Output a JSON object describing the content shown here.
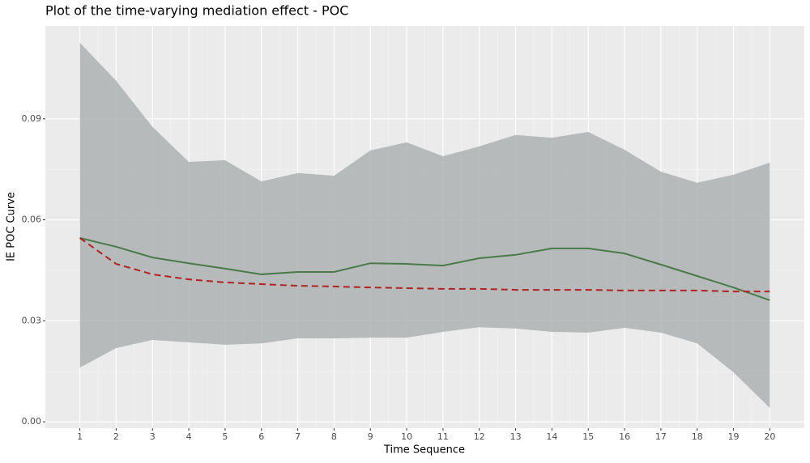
{
  "chart_data": {
    "type": "line",
    "title": "Plot of the time-varying mediation effect - POC",
    "x_label": "Time Sequence",
    "y_label": "IE POC Curve",
    "x": [
      1,
      2,
      3,
      4,
      5,
      6,
      7,
      8,
      9,
      10,
      11,
      12,
      13,
      14,
      15,
      16,
      17,
      18,
      19,
      20
    ],
    "band": {
      "color": "#aeb2b2",
      "upper": [
        0.1126,
        0.1013,
        0.0876,
        0.0772,
        0.0777,
        0.0714,
        0.0739,
        0.0731,
        0.0806,
        0.083,
        0.0789,
        0.0818,
        0.0852,
        0.0844,
        0.0861,
        0.0808,
        0.0743,
        0.071,
        0.0734,
        0.077
      ],
      "lower": [
        0.0161,
        0.0219,
        0.0243,
        0.0236,
        0.0229,
        0.0233,
        0.0248,
        0.0248,
        0.025,
        0.025,
        0.0267,
        0.0281,
        0.0277,
        0.0267,
        0.0265,
        0.0279,
        0.0265,
        0.0233,
        0.0147,
        0.0041
      ]
    },
    "series": [
      {
        "color": "#4a7a4a",
        "dashed": false,
        "values": [
          0.0546,
          0.052,
          0.0488,
          0.0471,
          0.0455,
          0.0438,
          0.0445,
          0.0445,
          0.0471,
          0.0469,
          0.0464,
          0.0486,
          0.0496,
          0.0515,
          0.0515,
          0.05,
          0.0467,
          0.0433,
          0.0399,
          0.0361
        ]
      },
      {
        "color": "#b22222",
        "dashed": true,
        "values": [
          0.0546,
          0.0469,
          0.0438,
          0.0423,
          0.0414,
          0.0409,
          0.0404,
          0.0402,
          0.0399,
          0.0397,
          0.0395,
          0.0395,
          0.0392,
          0.0392,
          0.0392,
          0.039,
          0.039,
          0.039,
          0.0387,
          0.0387
        ]
      }
    ],
    "xlim": [
      0.05,
      20.95
    ],
    "ylim": [
      -0.0019,
      0.1176
    ],
    "xticks": [
      1,
      2,
      3,
      4,
      5,
      6,
      7,
      8,
      9,
      10,
      11,
      12,
      13,
      14,
      15,
      16,
      17,
      18,
      19,
      20
    ],
    "yticks": [
      {
        "value": 0,
        "label": "0.00"
      },
      {
        "value": 0.03,
        "label": "0.03"
      },
      {
        "value": 0.06,
        "label": "0.06"
      },
      {
        "value": 0.09,
        "label": "0.09"
      }
    ],
    "grid": true
  }
}
